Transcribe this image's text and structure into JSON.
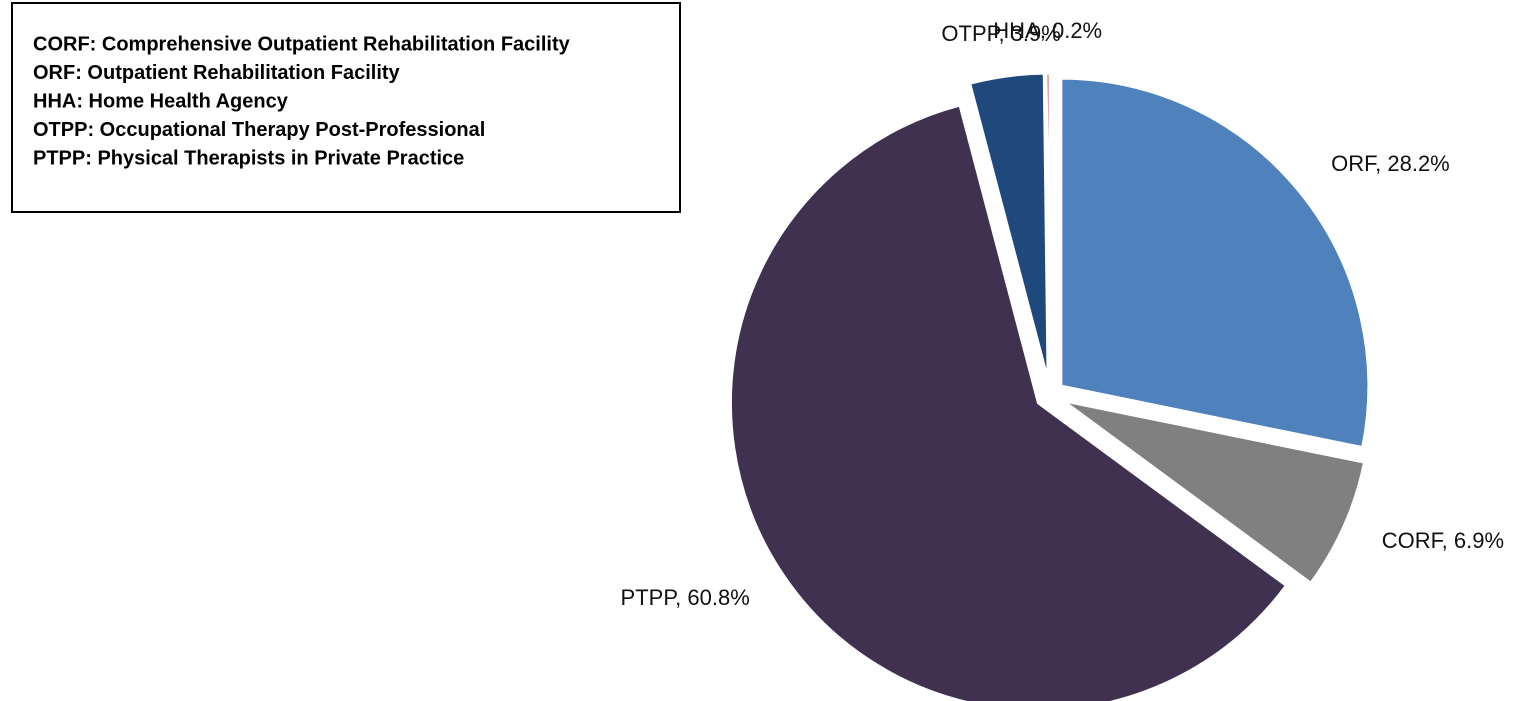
{
  "chart_data": {
    "type": "pie",
    "notes": [
      "CORF: Comprehensive Outpatient Rehabilitation Facility",
      "ORF: Outpatient Rehabilitation Facility",
      "HHA: Home Health Agency",
      "OTPP: Occupational Therapy Post-Professional",
      "PTPP: Physical Therapists in Private Practice"
    ],
    "categories": [
      "ORF",
      "CORF",
      "PTPP",
      "OTPP",
      "HHA"
    ],
    "values": [
      28.2,
      6.9,
      60.8,
      3.9,
      0.2
    ],
    "value_labels": [
      "ORF, 28.2%",
      "CORF, 6.9%",
      "PTPP, 60.8%",
      "OTPP, 3.9%",
      "HHA, 0.2%"
    ],
    "colors": [
      "#4f81bd",
      "#808080",
      "#403151",
      "#1f497d",
      "#c0262e"
    ]
  }
}
